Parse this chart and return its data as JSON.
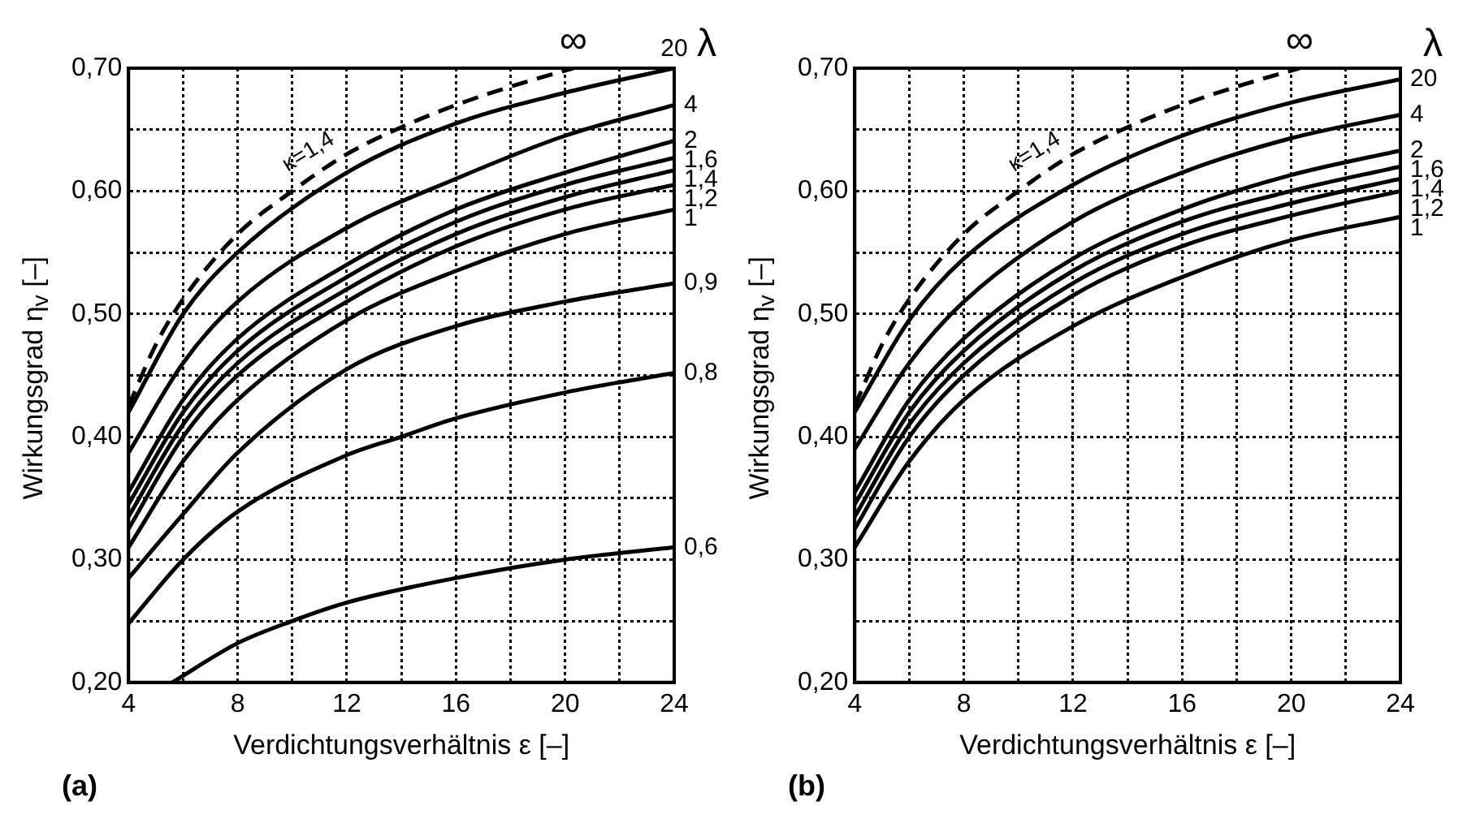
{
  "chart_data": [
    {
      "type": "line",
      "xlabel": "Verdichtungsverhältnis ε [–]",
      "ylabel": "Wirkungsgrad η$_{v}$ [–]",
      "legend_title": "λ",
      "annotations": [
        "κ=1,4",
        "(a)"
      ],
      "xlim": [
        4,
        24
      ],
      "xticks": [
        4,
        {
          "value": 6,
          "label": null
        },
        8,
        {
          "value": 10,
          "label": null
        },
        12,
        {
          "value": 14,
          "label": null
        },
        16,
        {
          "value": 18,
          "label": null
        },
        20,
        {
          "value": 22,
          "label": null
        },
        24
      ],
      "ylim": [
        0.2,
        0.7
      ],
      "yticks": [
        {
          "value": 0.2,
          "label": "0,20"
        },
        {
          "value": 0.25,
          "label": null
        },
        {
          "value": 0.3,
          "label": "0,30"
        },
        {
          "value": 0.35,
          "label": null
        },
        {
          "value": 0.4,
          "label": "0,40"
        },
        {
          "value": 0.45,
          "label": null
        },
        {
          "value": 0.5,
          "label": "0,50"
        },
        {
          "value": 0.55,
          "label": null
        },
        {
          "value": 0.6,
          "label": "0,60"
        },
        {
          "value": 0.65,
          "label": null
        },
        {
          "value": 0.7,
          "label": "0,70"
        }
      ],
      "grid": true,
      "legend": false,
      "series": [
        {
          "name": "∞",
          "color": "#000000",
          "line_style": "dashed",
          "x": [
            4,
            5,
            6,
            8,
            10,
            12,
            14,
            16,
            18,
            20.3
          ],
          "values": [
            0.425,
            0.475,
            0.512,
            0.565,
            0.6,
            0.63,
            0.652,
            0.67,
            0.685,
            0.7
          ]
        },
        {
          "name": "20",
          "color": "#000000",
          "x": [
            4,
            6,
            8,
            12,
            16,
            20,
            24
          ],
          "values": [
            0.42,
            0.5,
            0.55,
            0.615,
            0.655,
            0.68,
            0.7
          ]
        },
        {
          "name": "4",
          "color": "#000000",
          "x": [
            4,
            6,
            8,
            12,
            16,
            20,
            24
          ],
          "values": [
            0.387,
            0.46,
            0.51,
            0.57,
            0.61,
            0.645,
            0.67
          ]
        },
        {
          "name": "2",
          "color": "#000000",
          "x": [
            4,
            6,
            8,
            12,
            16,
            20,
            24
          ],
          "values": [
            0.355,
            0.43,
            0.48,
            0.54,
            0.585,
            0.615,
            0.641
          ]
        },
        {
          "name": "1,6",
          "color": "#000000",
          "x": [
            4,
            6,
            8,
            12,
            16,
            20,
            24
          ],
          "values": [
            0.345,
            0.42,
            0.47,
            0.53,
            0.575,
            0.605,
            0.627
          ]
        },
        {
          "name": "1,4",
          "color": "#000000",
          "x": [
            4,
            6,
            8,
            12,
            16,
            20,
            24
          ],
          "values": [
            0.335,
            0.41,
            0.46,
            0.52,
            0.565,
            0.595,
            0.617
          ]
        },
        {
          "name": "1,2",
          "color": "#000000",
          "x": [
            4,
            6,
            8,
            12,
            16,
            20,
            24
          ],
          "values": [
            0.325,
            0.4,
            0.45,
            0.51,
            0.555,
            0.585,
            0.605
          ]
        },
        {
          "name": "1",
          "color": "#000000",
          "x": [
            4,
            6,
            8,
            12,
            16,
            20,
            24
          ],
          "values": [
            0.31,
            0.38,
            0.43,
            0.495,
            0.535,
            0.565,
            0.585
          ]
        },
        {
          "name": "0,9",
          "color": "#000000",
          "x": [
            4,
            6,
            8,
            12,
            16,
            20,
            24
          ],
          "values": [
            0.285,
            0.337,
            0.387,
            0.455,
            0.49,
            0.51,
            0.525
          ]
        },
        {
          "name": "0,8",
          "color": "#000000",
          "x": [
            4,
            6,
            8,
            12,
            14,
            16,
            20,
            24
          ],
          "values": [
            0.248,
            0.3,
            0.339,
            0.385,
            0.4,
            0.415,
            0.436,
            0.452
          ]
        },
        {
          "name": "0,6",
          "color": "#000000",
          "x": [
            5.6,
            8,
            10,
            12,
            16,
            20,
            24
          ],
          "values": [
            0.2,
            0.232,
            0.25,
            0.265,
            0.285,
            0.3,
            0.31
          ]
        }
      ]
    },
    {
      "type": "line",
      "xlabel": "Verdichtungsverhältnis ε [–]",
      "ylabel": "Wirkungsgrad η$_{v}$ [–]",
      "legend_title": "λ",
      "annotations": [
        "κ=1,4",
        "(b)"
      ],
      "xlim": [
        4,
        24
      ],
      "xticks": [
        4,
        {
          "value": 6,
          "label": null
        },
        8,
        {
          "value": 10,
          "label": null
        },
        12,
        {
          "value": 14,
          "label": null
        },
        16,
        {
          "value": 18,
          "label": null
        },
        20,
        {
          "value": 22,
          "label": null
        },
        24
      ],
      "ylim": [
        0.2,
        0.7
      ],
      "yticks": [
        {
          "value": 0.2,
          "label": "0,20"
        },
        {
          "value": 0.25,
          "label": null
        },
        {
          "value": 0.3,
          "label": "0,30"
        },
        {
          "value": 0.35,
          "label": null
        },
        {
          "value": 0.4,
          "label": "0,40"
        },
        {
          "value": 0.45,
          "label": null
        },
        {
          "value": 0.5,
          "label": "0,50"
        },
        {
          "value": 0.55,
          "label": null
        },
        {
          "value": 0.6,
          "label": "0,60"
        },
        {
          "value": 0.65,
          "label": null
        },
        {
          "value": 0.7,
          "label": "0,70"
        }
      ],
      "grid": true,
      "legend": false,
      "series": [
        {
          "name": "∞",
          "color": "#000000",
          "line_style": "dashed",
          "x": [
            4,
            5,
            6,
            8,
            10,
            12,
            14,
            16,
            18,
            20.3
          ],
          "values": [
            0.425,
            0.475,
            0.512,
            0.565,
            0.6,
            0.63,
            0.652,
            0.67,
            0.685,
            0.7
          ]
        },
        {
          "name": "20",
          "color": "#000000",
          "x": [
            4,
            6,
            8,
            12,
            16,
            20,
            24
          ],
          "values": [
            0.42,
            0.495,
            0.545,
            0.605,
            0.645,
            0.672,
            0.691
          ]
        },
        {
          "name": "4",
          "color": "#000000",
          "x": [
            4,
            6,
            8,
            12,
            16,
            20,
            24
          ],
          "values": [
            0.39,
            0.46,
            0.51,
            0.575,
            0.615,
            0.643,
            0.662
          ]
        },
        {
          "name": "2",
          "color": "#000000",
          "x": [
            4,
            6,
            8,
            12,
            16,
            20,
            24
          ],
          "values": [
            0.355,
            0.43,
            0.48,
            0.545,
            0.585,
            0.613,
            0.633
          ]
        },
        {
          "name": "1,6",
          "color": "#000000",
          "x": [
            4,
            6,
            8,
            12,
            16,
            20,
            24
          ],
          "values": [
            0.345,
            0.42,
            0.47,
            0.535,
            0.575,
            0.6,
            0.62
          ]
        },
        {
          "name": "1,4",
          "color": "#000000",
          "x": [
            4,
            6,
            8,
            12,
            16,
            20,
            24
          ],
          "values": [
            0.335,
            0.41,
            0.46,
            0.525,
            0.565,
            0.59,
            0.61
          ]
        },
        {
          "name": "1,2",
          "color": "#000000",
          "x": [
            4,
            6,
            8,
            12,
            16,
            20,
            24
          ],
          "values": [
            0.325,
            0.4,
            0.45,
            0.515,
            0.555,
            0.58,
            0.6
          ]
        },
        {
          "name": "1",
          "color": "#000000",
          "x": [
            4,
            6,
            8,
            12,
            16,
            20,
            24
          ],
          "values": [
            0.31,
            0.38,
            0.43,
            0.49,
            0.53,
            0.56,
            0.579
          ]
        }
      ]
    }
  ]
}
